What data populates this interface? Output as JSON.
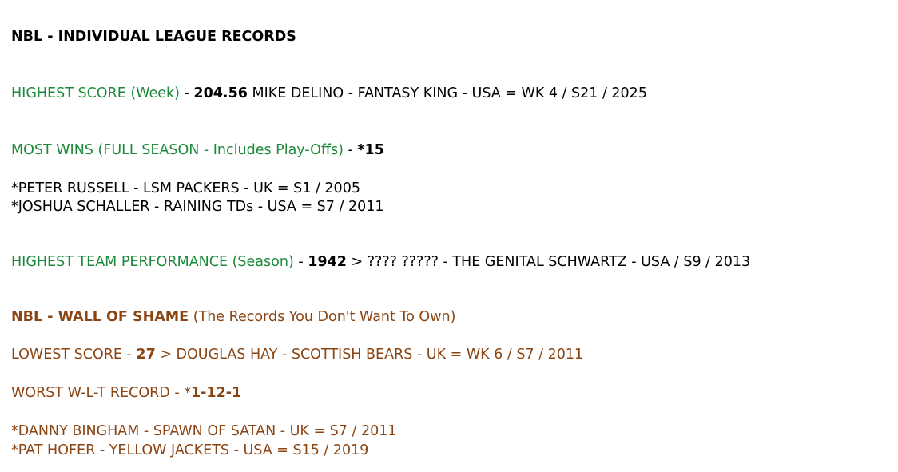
{
  "colors": {
    "record_label": "#1c8a3a",
    "shame": "#8b4513",
    "text": "#000000"
  },
  "title": "NBL - INDIVIDUAL LEAGUE RECORDS",
  "records": {
    "highest_score": {
      "label": "HIGHEST SCORE (Week)",
      "sep": " - ",
      "value": "204.56",
      "detail": " MIKE DELINO - FANTASY KING - USA = WK 4 / S21 / 2025"
    },
    "most_wins": {
      "label": "MOST WINS (FULL SEASON - Includes Play-Offs)",
      "sep": " - ",
      "star": "*",
      "value": "15",
      "holders": [
        "*PETER RUSSELL - LSM PACKERS - UK = S1 / 2005",
        "*JOSHUA SCHALLER - RAINING TDs - USA = S7 / 2011"
      ]
    },
    "highest_team": {
      "label": "HIGHEST TEAM PERFORMANCE (Season)",
      "sep": " - ",
      "value": "1942",
      "detail": " > ???? ????? - THE GENITAL SCHWARTZ - USA / S9 / 2013"
    }
  },
  "shame": {
    "title": "NBL - WALL OF SHAME",
    "subtitle": " (The Records You Don't Want To Own)",
    "lowest": {
      "label": "LOWEST SCORE - ",
      "value": "27",
      "detail": " > DOUGLAS HAY - SCOTTISH BEARS - UK = WK 6 / S7 / 2011"
    },
    "worst_wlt": {
      "label": "WORST W-L-T RECORD - *",
      "value": "1-12-1",
      "holders": [
        "*DANNY BINGHAM - SPAWN OF SATAN - UK = S7 / 2011",
        "*PAT HOFER - YELLOW JACKETS - USA = S15 / 2019"
      ]
    }
  }
}
